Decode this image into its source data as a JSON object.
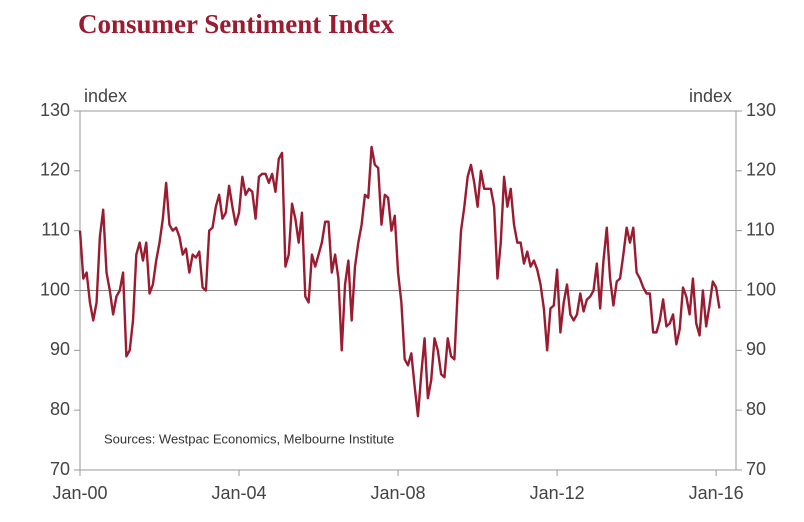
{
  "chart_data": {
    "type": "line",
    "title": "Consumer Sentiment Index",
    "y_label": "index",
    "y2_label": "index",
    "annotation": "Sources: Westpac Economics, Melbourne Institute",
    "xlim": [
      "2000-01",
      "2016-07"
    ],
    "xticks": [
      {
        "value": "2000-01",
        "label": "Jan-00"
      },
      {
        "value": "2004-01",
        "label": "Jan-04"
      },
      {
        "value": "2008-01",
        "label": "Jan-08"
      },
      {
        "value": "2012-01",
        "label": "Jan-12"
      },
      {
        "value": "2016-01",
        "label": "Jan-16"
      }
    ],
    "ylim": [
      70,
      130
    ],
    "yticks": [
      70,
      80,
      90,
      100,
      110,
      120,
      130
    ],
    "y2lim": [
      70,
      130
    ],
    "y2ticks": [
      70,
      80,
      90,
      100,
      110,
      120,
      130
    ],
    "reference_line": 100,
    "x": [
      "2000-01",
      "2000-02",
      "2000-03",
      "2000-04",
      "2000-05",
      "2000-06",
      "2000-07",
      "2000-08",
      "2000-09",
      "2000-10",
      "2000-11",
      "2000-12",
      "2001-01",
      "2001-02",
      "2001-03",
      "2001-04",
      "2001-05",
      "2001-06",
      "2001-07",
      "2001-08",
      "2001-09",
      "2001-10",
      "2001-11",
      "2001-12",
      "2002-01",
      "2002-02",
      "2002-03",
      "2002-04",
      "2002-05",
      "2002-06",
      "2002-07",
      "2002-08",
      "2002-09",
      "2002-10",
      "2002-11",
      "2002-12",
      "2003-01",
      "2003-02",
      "2003-03",
      "2003-04",
      "2003-05",
      "2003-06",
      "2003-07",
      "2003-08",
      "2003-09",
      "2003-10",
      "2003-11",
      "2003-12",
      "2004-01",
      "2004-02",
      "2004-03",
      "2004-04",
      "2004-05",
      "2004-06",
      "2004-07",
      "2004-08",
      "2004-09",
      "2004-10",
      "2004-11",
      "2004-12",
      "2005-01",
      "2005-02",
      "2005-03",
      "2005-04",
      "2005-05",
      "2005-06",
      "2005-07",
      "2005-08",
      "2005-09",
      "2005-10",
      "2005-11",
      "2005-12",
      "2006-01",
      "2006-02",
      "2006-03",
      "2006-04",
      "2006-05",
      "2006-06",
      "2006-07",
      "2006-08",
      "2006-09",
      "2006-10",
      "2006-11",
      "2006-12",
      "2007-01",
      "2007-02",
      "2007-03",
      "2007-04",
      "2007-05",
      "2007-06",
      "2007-07",
      "2007-08",
      "2007-09",
      "2007-10",
      "2007-11",
      "2007-12",
      "2008-01",
      "2008-02",
      "2008-03",
      "2008-04",
      "2008-05",
      "2008-06",
      "2008-07",
      "2008-08",
      "2008-09",
      "2008-10",
      "2008-11",
      "2008-12",
      "2009-01",
      "2009-02",
      "2009-03",
      "2009-04",
      "2009-05",
      "2009-06",
      "2009-07",
      "2009-08",
      "2009-09",
      "2009-10",
      "2009-11",
      "2009-12",
      "2010-01",
      "2010-02",
      "2010-03",
      "2010-04",
      "2010-05",
      "2010-06",
      "2010-07",
      "2010-08",
      "2010-09",
      "2010-10",
      "2010-11",
      "2010-12",
      "2011-01",
      "2011-02",
      "2011-03",
      "2011-04",
      "2011-05",
      "2011-06",
      "2011-07",
      "2011-08",
      "2011-09",
      "2011-10",
      "2011-11",
      "2011-12",
      "2012-01",
      "2012-02",
      "2012-03",
      "2012-04",
      "2012-05",
      "2012-06",
      "2012-07",
      "2012-08",
      "2012-09",
      "2012-10",
      "2012-11",
      "2012-12",
      "2013-01",
      "2013-02",
      "2013-03",
      "2013-04",
      "2013-05",
      "2013-06",
      "2013-07",
      "2013-08",
      "2013-09",
      "2013-10",
      "2013-11",
      "2013-12",
      "2014-01",
      "2014-02",
      "2014-03",
      "2014-04",
      "2014-05",
      "2014-06",
      "2014-07",
      "2014-08",
      "2014-09",
      "2014-10",
      "2014-11",
      "2014-12",
      "2015-01",
      "2015-02",
      "2015-03",
      "2015-04",
      "2015-05",
      "2015-06",
      "2015-07",
      "2015-08",
      "2015-09",
      "2015-10",
      "2015-11",
      "2015-12",
      "2016-01",
      "2016-02"
    ],
    "series": [
      {
        "color": "#9b1b30",
        "values": [
          110,
          102,
          103,
          98,
          95,
          98,
          109,
          113.5,
          103,
          100,
          96,
          99,
          100,
          103,
          89,
          90,
          95,
          106,
          108,
          105,
          108,
          99.5,
          101,
          105,
          108,
          112,
          118,
          111,
          110,
          110.5,
          109,
          106,
          107,
          103,
          106,
          105.5,
          106.5,
          100.5,
          100,
          110,
          110.5,
          114,
          116,
          112,
          113,
          117.5,
          114,
          111,
          113,
          119,
          116,
          117,
          116.5,
          112,
          119,
          119.5,
          119.5,
          118,
          119.5,
          116.5,
          122,
          123,
          104,
          106,
          114.5,
          112,
          108,
          113,
          99,
          98,
          106,
          104,
          106,
          108,
          111.5,
          111.5,
          103,
          106,
          102,
          90,
          101,
          105,
          95,
          104,
          108,
          111,
          116,
          115.5,
          124,
          121,
          120.5,
          111,
          116,
          115.5,
          110,
          112.5,
          103,
          98,
          88.5,
          87.5,
          89.5,
          84,
          79,
          86,
          92,
          82,
          85,
          92,
          90,
          86,
          85.5,
          92,
          89,
          88.5,
          100,
          110,
          114,
          119,
          121,
          118,
          114,
          120,
          117,
          117,
          117,
          114,
          102,
          108,
          119,
          114,
          117,
          111,
          108,
          108,
          104.5,
          106.5,
          104,
          105,
          103.5,
          101,
          97,
          90,
          97,
          97.5,
          103.5,
          93,
          98,
          101,
          96,
          95,
          96,
          99.5,
          96.5,
          98.5,
          99,
          100,
          104.5,
          97,
          105,
          110.5,
          102,
          97.5,
          101.5,
          102,
          106,
          110.5,
          108,
          110.5,
          103,
          102,
          100.5,
          99.5,
          99.5,
          93,
          93,
          95,
          98.5,
          94,
          94.5,
          96,
          91,
          93.5,
          100.5,
          99,
          96,
          102,
          94.5,
          92.5,
          100,
          94,
          97.5,
          101.5,
          100.5,
          97
        ]
      }
    ]
  }
}
